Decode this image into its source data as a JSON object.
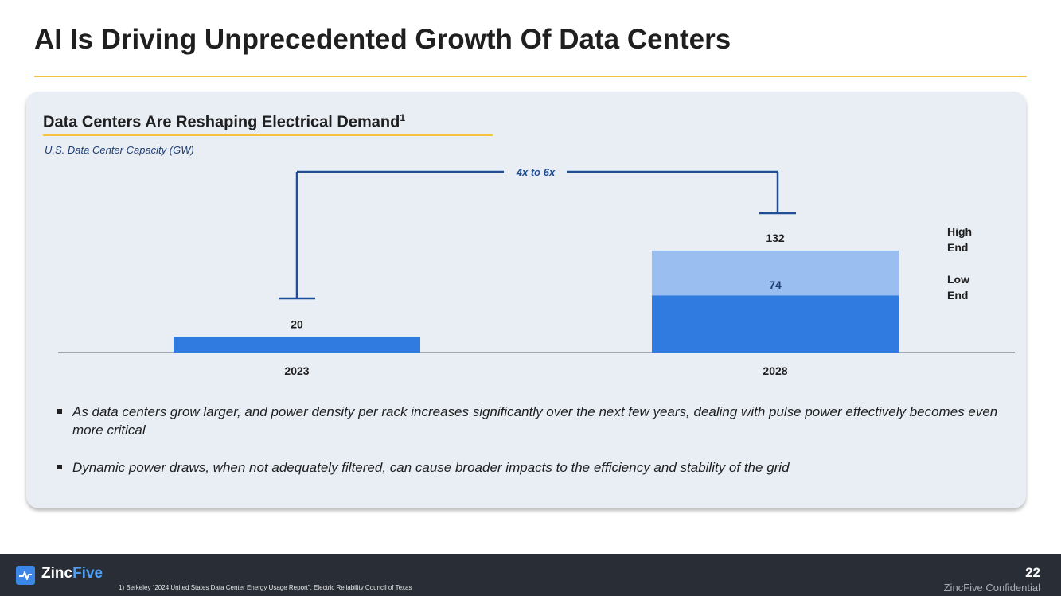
{
  "title": "AI Is Driving Unprecedented Growth Of Data Centers",
  "panel": {
    "heading": "Data Centers Are Reshaping Electrical Demand",
    "heading_sup": "1",
    "chart_subtitle": "U.S. Data Center Capacity (GW)"
  },
  "chart_data": {
    "type": "bar",
    "title": "U.S. Data Center Capacity (GW)",
    "categories": [
      "2023",
      "2028"
    ],
    "series": [
      {
        "name": "Low End",
        "values": [
          20,
          74
        ],
        "color": "#2f7be0"
      },
      {
        "name": "High End",
        "values": [
          null,
          132
        ],
        "color": "#9bbef0"
      }
    ],
    "data_labels": [
      "20",
      "74",
      "132"
    ],
    "legend": [
      "High End",
      "Low End"
    ],
    "legend_placement": "right",
    "annotation": "4x to 6x",
    "annotation_color": "#1f4e96",
    "ylim": [
      0,
      180
    ],
    "grid": false
  },
  "bullets": [
    "As data centers grow larger, and power density per rack increases significantly over the next few years, dealing with pulse power effectively becomes even more critical",
    "Dynamic power draws, when not adequately filtered, can cause broader impacts to the efficiency and stability of the grid"
  ],
  "footer": {
    "logo_primary": "Zinc",
    "logo_accent": "Five",
    "footnote": "1)      Berkeley “2024 United States Data Center Energy Usage Report”, Electric Reliability Council of Texas",
    "page_number": "22",
    "confidential": "ZincFive Confidential"
  }
}
